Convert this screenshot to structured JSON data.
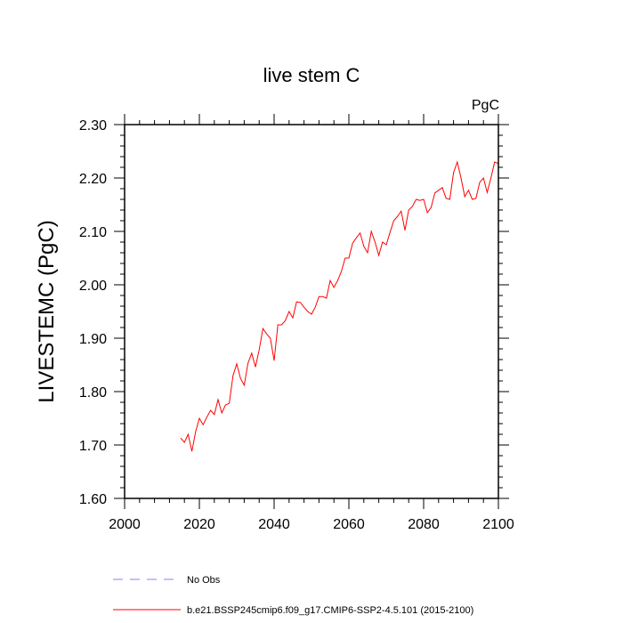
{
  "chart_data": {
    "type": "line",
    "title": "live stem C",
    "units_label": "PgC",
    "ylabel": "LIVESTEMC  (PgC)",
    "xlabel": "",
    "xlim": [
      2000,
      2100
    ],
    "ylim": [
      1.6,
      2.3
    ],
    "x_ticks": [
      2000,
      2020,
      2040,
      2060,
      2080,
      2100
    ],
    "x_tick_labels": [
      "2000",
      "2020",
      "2040",
      "2060",
      "2080",
      "2100"
    ],
    "y_ticks": [
      1.6,
      1.7,
      1.8,
      1.9,
      2.0,
      2.1,
      2.2,
      2.3
    ],
    "y_tick_labels": [
      "1.60",
      "1.70",
      "1.80",
      "1.90",
      "2.00",
      "2.10",
      "2.20",
      "2.30"
    ],
    "grid": false,
    "legend_position": "bottom-left below plot",
    "legend": [
      {
        "label": "No Obs",
        "color": "#8080ff",
        "style": "dashed"
      },
      {
        "label": "b.e21.BSSP245cmip6.f09_g17.CMIP6-SSP2-4.5.101 (2015-2100)",
        "color": "#ff0000",
        "style": "solid"
      }
    ],
    "series": [
      {
        "name": "b.e21.BSSP245cmip6.f09_g17.CMIP6-SSP2-4.5.101 (2015-2100)",
        "color": "#ff0000",
        "x": [
          2015,
          2016,
          2017,
          2018,
          2019,
          2020,
          2021,
          2022,
          2023,
          2024,
          2025,
          2026,
          2027,
          2028,
          2029,
          2030,
          2031,
          2032,
          2033,
          2034,
          2035,
          2036,
          2037,
          2038,
          2039,
          2040,
          2041,
          2042,
          2043,
          2044,
          2045,
          2046,
          2047,
          2048,
          2049,
          2050,
          2051,
          2052,
          2053,
          2054,
          2055,
          2056,
          2057,
          2058,
          2059,
          2060,
          2061,
          2062,
          2063,
          2064,
          2065,
          2066,
          2067,
          2068,
          2069,
          2070,
          2071,
          2072,
          2073,
          2074,
          2075,
          2076,
          2077,
          2078,
          2079,
          2080,
          2081,
          2082,
          2083,
          2084,
          2085,
          2086,
          2087,
          2088,
          2089,
          2090,
          2091,
          2092,
          2093,
          2094,
          2095,
          2096,
          2097,
          2098,
          2099,
          2100
        ],
        "values": [
          1.713,
          1.705,
          1.72,
          1.688,
          1.725,
          1.75,
          1.738,
          1.752,
          1.765,
          1.757,
          1.785,
          1.76,
          1.775,
          1.778,
          1.83,
          1.852,
          1.825,
          1.812,
          1.853,
          1.872,
          1.846,
          1.878,
          1.918,
          1.908,
          1.9,
          1.858,
          1.925,
          1.925,
          1.933,
          1.95,
          1.938,
          1.968,
          1.967,
          1.958,
          1.95,
          1.945,
          1.958,
          1.978,
          1.978,
          1.975,
          2.008,
          1.995,
          2.008,
          2.025,
          2.05,
          2.05,
          2.078,
          2.088,
          2.097,
          2.072,
          2.06,
          2.1,
          2.08,
          2.055,
          2.08,
          2.075,
          2.098,
          2.12,
          2.128,
          2.138,
          2.102,
          2.14,
          2.147,
          2.16,
          2.158,
          2.16,
          2.135,
          2.145,
          2.172,
          2.177,
          2.182,
          2.162,
          2.16,
          2.21,
          2.23,
          2.2,
          2.165,
          2.177,
          2.16,
          2.162,
          2.192,
          2.2,
          2.173,
          2.2,
          2.23,
          2.227
        ]
      }
    ]
  }
}
